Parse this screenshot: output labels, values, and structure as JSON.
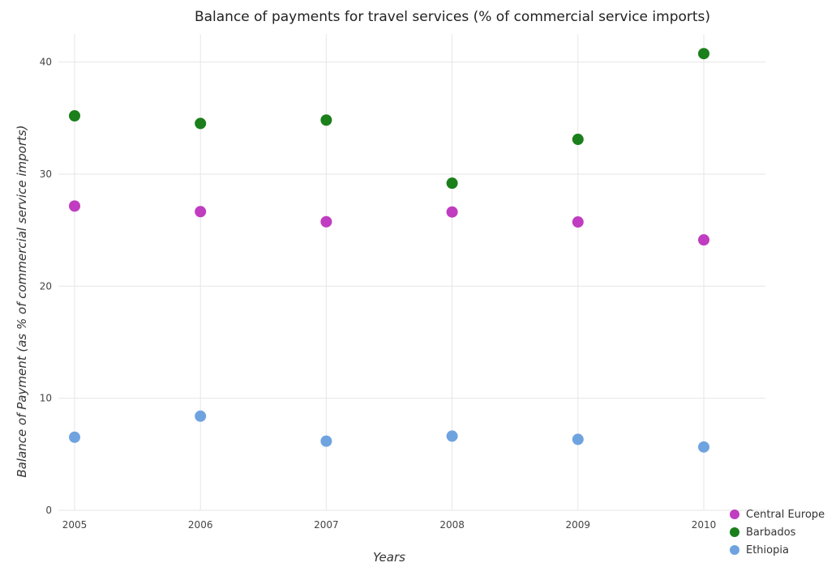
{
  "chart_data": {
    "type": "scatter",
    "title": "Balance of payments for travel services (% of commercial service imports)",
    "xlabel": "Years",
    "ylabel": "Balance of Payment (as % of commercial service imports)",
    "categories": [
      "2005",
      "2006",
      "2007",
      "2008",
      "2009",
      "2010"
    ],
    "ylim": [
      0,
      42.5
    ],
    "yticks": [
      0,
      10,
      20,
      30,
      40
    ],
    "grid": true,
    "legend_position": "bottom-right",
    "series": [
      {
        "name": "Central Europe",
        "color": "#c03cc0",
        "values": [
          27.15,
          26.65,
          25.75,
          26.62,
          25.73,
          24.13
        ]
      },
      {
        "name": "Barbados",
        "color": "#1b7f1b",
        "values": [
          35.2,
          34.52,
          34.82,
          29.19,
          33.1,
          40.75
        ]
      },
      {
        "name": "Ethiopia",
        "color": "#6fa3e0",
        "values": [
          6.52,
          8.4,
          6.17,
          6.62,
          6.33,
          5.65
        ]
      }
    ]
  }
}
